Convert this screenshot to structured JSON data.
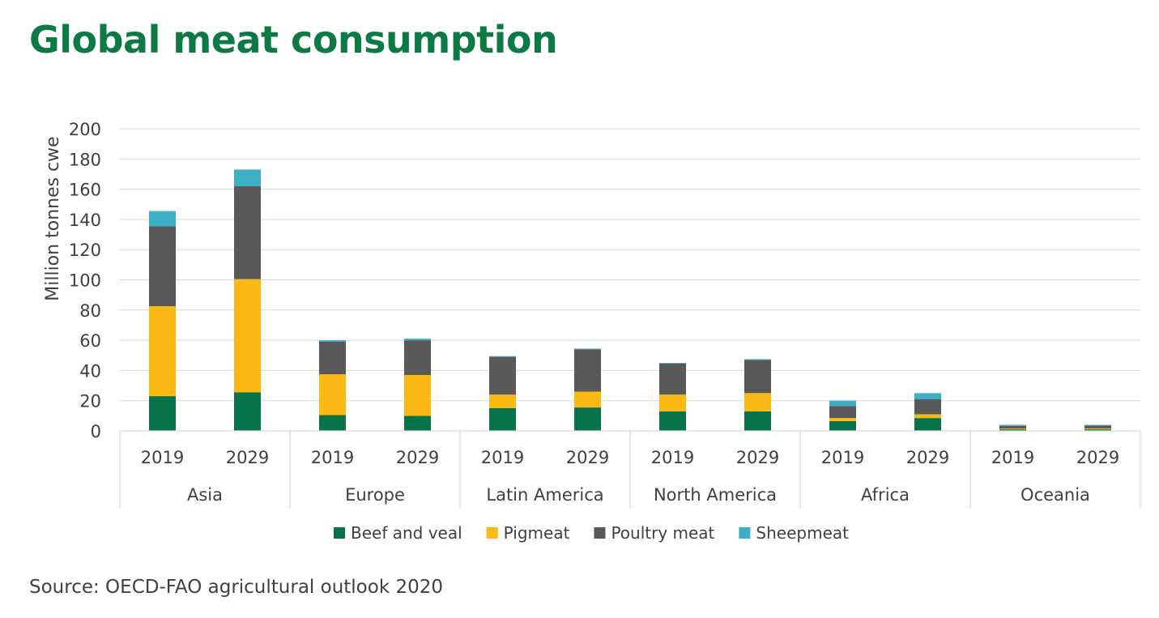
{
  "title": "Global meat consumption",
  "source": "Source: OECD-FAO agricultural outlook 2020",
  "colors": {
    "title": "#0b7a43",
    "beef": "#06734a",
    "pig": "#fcb813",
    "poultry": "#595959",
    "sheep": "#3aafc6",
    "grid": "#d9d9d9",
    "axis_text": "#404040"
  },
  "chart_data": {
    "type": "bar",
    "stacked": true,
    "ylabel": "Million tonnes cwe",
    "xlabel": "",
    "ylim": [
      0,
      200
    ],
    "yticks": [
      0,
      20,
      40,
      60,
      80,
      100,
      120,
      140,
      160,
      180,
      200
    ],
    "grid": true,
    "legend_position": "bottom",
    "groups": [
      "Asia",
      "Europe",
      "Latin America",
      "North America",
      "Africa",
      "Oceania"
    ],
    "years": [
      "2019",
      "2029"
    ],
    "categories": [
      "Asia 2019",
      "Asia 2029",
      "Europe 2019",
      "Europe 2029",
      "Latin America 2019",
      "Latin America 2029",
      "North America 2019",
      "North America 2029",
      "Africa 2019",
      "Africa 2029",
      "Oceania 2019",
      "Oceania 2029"
    ],
    "series": [
      {
        "name": "Beef and veal",
        "color_key": "beef",
        "values": [
          23,
          25.5,
          10.5,
          10,
          15,
          15.5,
          13,
          13,
          6.5,
          8.5,
          1,
          1
        ]
      },
      {
        "name": "Pigmeat",
        "color_key": "pig",
        "values": [
          59.5,
          75,
          27,
          27,
          9,
          10.5,
          11,
          12,
          2,
          2.5,
          0.6,
          0.7
        ]
      },
      {
        "name": "Poultry meat",
        "color_key": "poultry",
        "values": [
          53,
          61.5,
          21.5,
          23,
          25,
          28,
          20.5,
          22,
          8,
          10,
          1.8,
          1.8
        ]
      },
      {
        "name": "Sheepmeat",
        "color_key": "sheep",
        "values": [
          10,
          11,
          1,
          1,
          0.5,
          0.5,
          0.5,
          0.5,
          3.5,
          4,
          0.6,
          0.5
        ]
      }
    ]
  }
}
